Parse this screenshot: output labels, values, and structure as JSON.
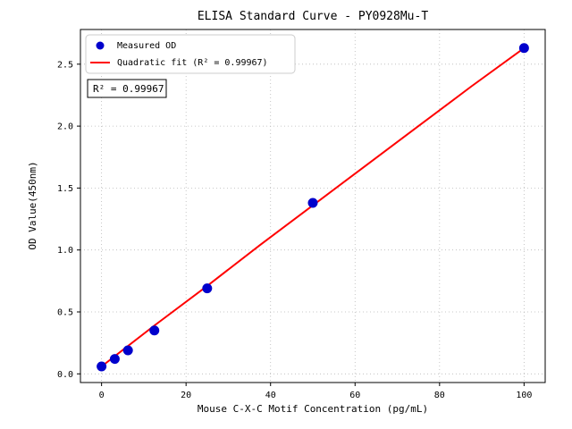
{
  "figure": {
    "background": "#ffffff"
  },
  "chart_data": {
    "type": "scatter",
    "title": "ELISA Standard Curve - PY0928Mu-T",
    "xlabel": "Mouse C-X-C Motif Concentration (pg/mL)",
    "ylabel": "OD Value(450nm)",
    "xlim": [
      -5,
      105
    ],
    "ylim": [
      -0.07,
      2.78
    ],
    "xticks": [
      0,
      20,
      40,
      60,
      80,
      100
    ],
    "xtick_labels": [
      "0",
      "20",
      "40",
      "60",
      "80",
      "100"
    ],
    "yticks": [
      0.0,
      0.5,
      1.0,
      1.5,
      2.0,
      2.5
    ],
    "ytick_labels": [
      "0.0",
      "0.5",
      "1.0",
      "1.5",
      "2.0",
      "2.5"
    ],
    "grid": true,
    "legend_position": "upper left",
    "annotation": "R² = 0.99967",
    "series": [
      {
        "name": "Measured OD",
        "type": "scatter",
        "color": "#0000cc",
        "x": [
          0,
          3.125,
          6.25,
          12.5,
          25,
          50,
          100
        ],
        "y": [
          0.06,
          0.12,
          0.19,
          0.35,
          0.69,
          1.38,
          2.63
        ]
      },
      {
        "name": "Quadratic fit (R² = 0.99967)",
        "type": "line",
        "color": "#ff0000",
        "x": [
          0,
          12.5,
          25,
          37.5,
          50,
          62.5,
          75,
          87.5,
          100
        ],
        "y": [
          0.06,
          0.39,
          0.71,
          1.04,
          1.36,
          1.68,
          2.0,
          2.32,
          2.63
        ]
      }
    ]
  }
}
